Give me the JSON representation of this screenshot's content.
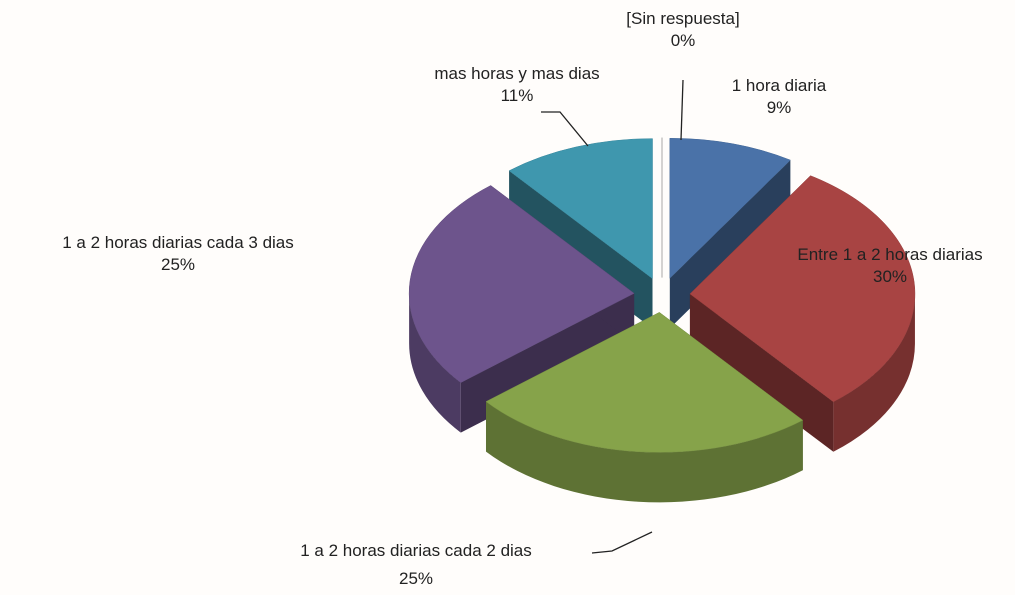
{
  "chart_data": {
    "type": "pie3d",
    "categories": [
      "1 hora diaria",
      "Entre 1 a 2 horas diarias",
      "1 a 2 horas diarias cada 2 dias",
      "1 a 2 horas diarias cada 3 dias",
      "mas horas y mas dias",
      "[Sin respuesta]"
    ],
    "values": [
      9,
      30,
      25,
      25,
      11,
      0
    ],
    "value_labels": [
      "9%",
      "30%",
      "25%",
      "25%",
      "11%",
      "0%"
    ],
    "colors": [
      "#4a72a8",
      "#a84443",
      "#86a34a",
      "#6d548c",
      "#3f97ae",
      "#9a9a9a"
    ]
  }
}
